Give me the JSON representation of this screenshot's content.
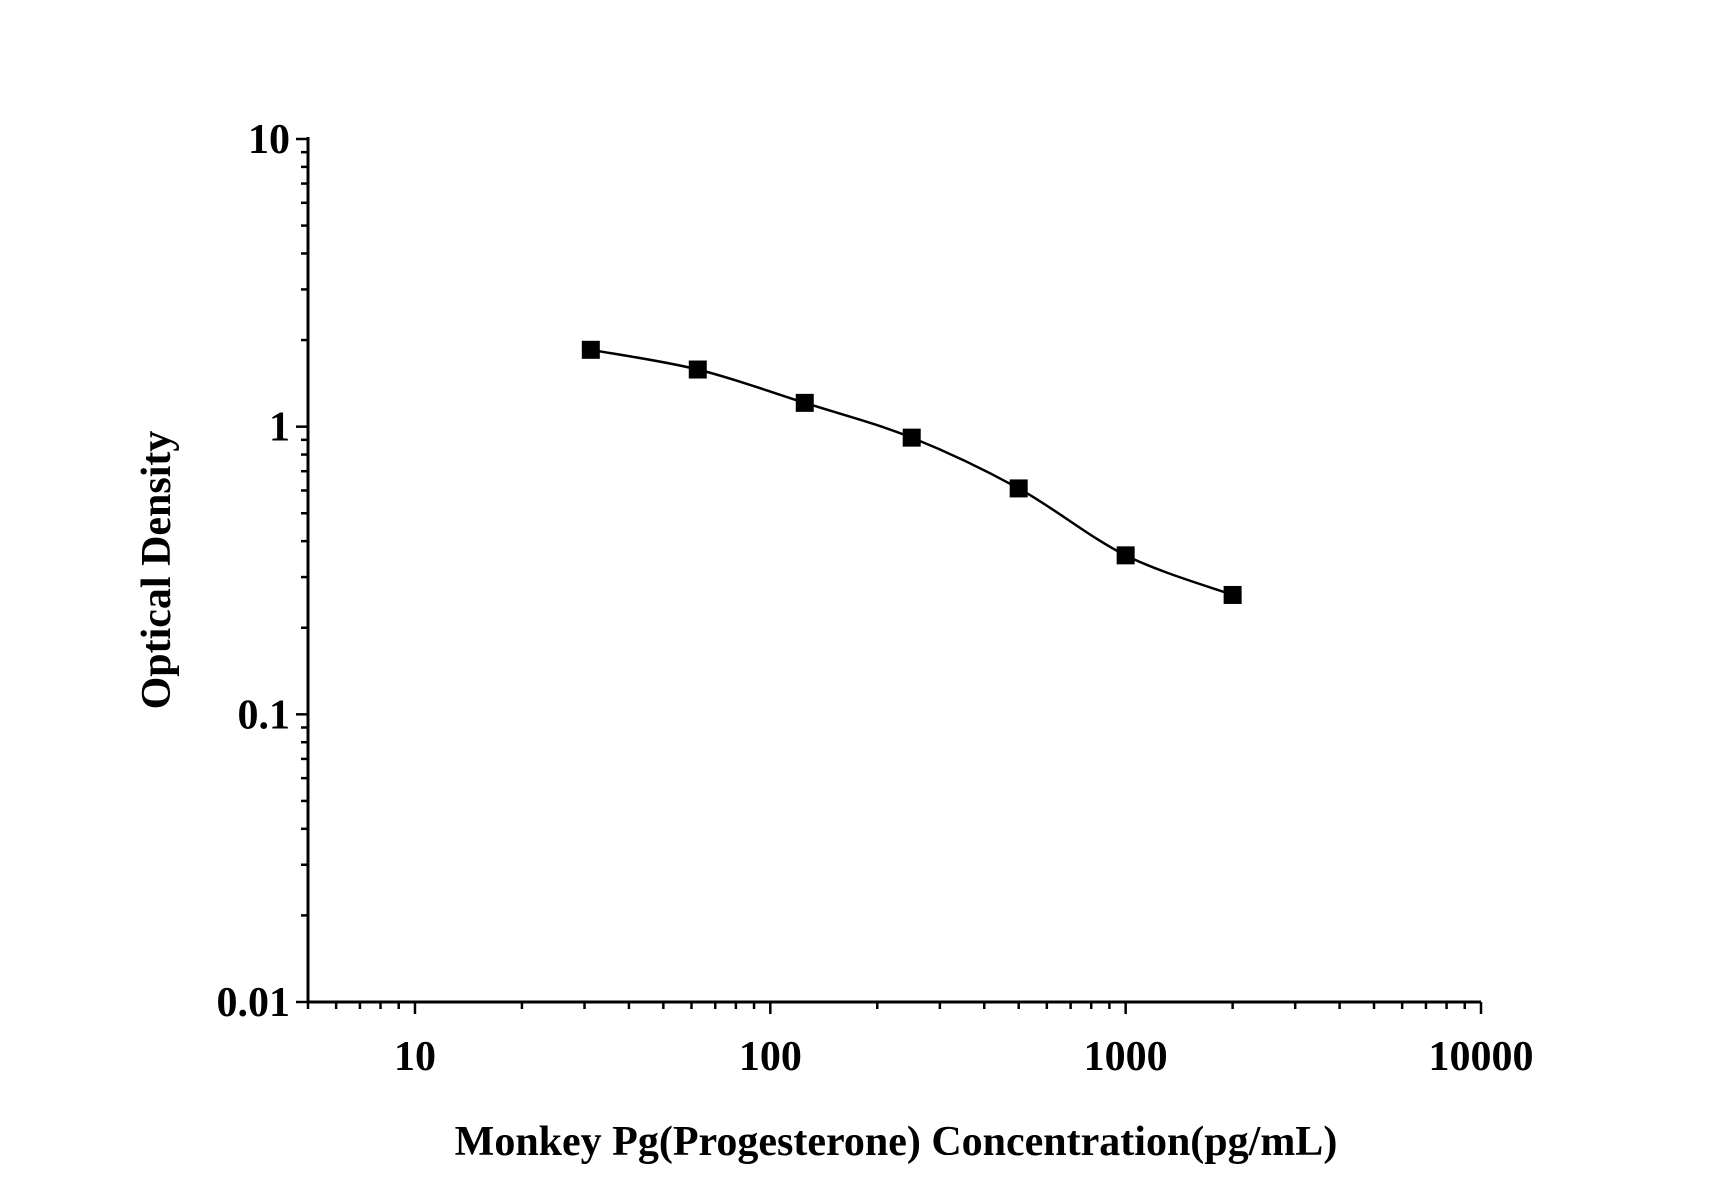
{
  "chart_data": {
    "type": "line",
    "title": "",
    "xlabel": "Monkey Pg(Progesterone) Concentration(pg/mL)",
    "ylabel": "Optical Density",
    "xscale": "log",
    "yscale": "log",
    "xlim": [
      5,
      10000
    ],
    "ylim": [
      0.01,
      10
    ],
    "xticks": [
      "10",
      "100",
      "1000",
      "10000"
    ],
    "yticks": [
      "0.01",
      "0.1",
      "1",
      "10"
    ],
    "grid": false,
    "marker": "square",
    "color": "#000000",
    "series": [
      {
        "x": [
          31.25,
          62.5,
          125,
          250,
          500,
          1000,
          2000
        ],
        "y": [
          1.85,
          1.58,
          1.21,
          0.916,
          0.61,
          0.357,
          0.26
        ]
      }
    ]
  }
}
